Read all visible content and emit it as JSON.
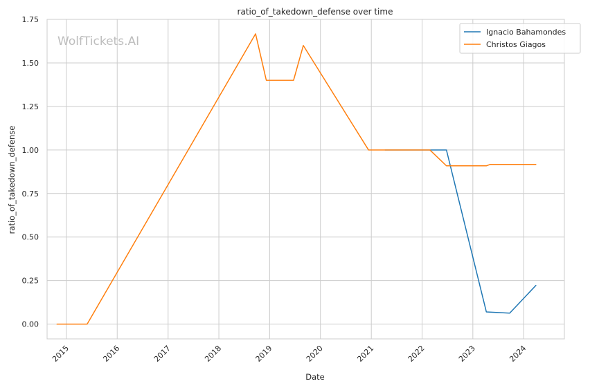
{
  "watermark": "WolfTickets.AI",
  "chart_data": {
    "type": "line",
    "title": "ratio_of_takedown_defense over time",
    "xlabel": "Date",
    "ylabel": "ratio_of_takedown_defense",
    "xlim": [
      "2014-08-15",
      "2024-10-20"
    ],
    "ylim": [
      -0.085,
      1.75
    ],
    "x_ticks": [
      "2015-01-01",
      "2016-01-01",
      "2017-01-01",
      "2018-01-01",
      "2019-01-01",
      "2020-01-01",
      "2021-01-01",
      "2022-01-01",
      "2023-01-01",
      "2024-01-01"
    ],
    "x_tick_labels": [
      "2015",
      "2016",
      "2017",
      "2018",
      "2019",
      "2020",
      "2021",
      "2022",
      "2023",
      "2024"
    ],
    "y_ticks": [
      0.0,
      0.25,
      0.5,
      0.75,
      1.0,
      1.25,
      1.5,
      1.75
    ],
    "y_tick_labels": [
      "0.00",
      "0.25",
      "0.50",
      "0.75",
      "1.00",
      "1.25",
      "1.50",
      "1.75"
    ],
    "grid": true,
    "legend_position": "top-right",
    "series": [
      {
        "name": "Ignacio Bahamondes",
        "color": "#1f77b4",
        "points": [
          [
            "2021-04-10",
            1.0
          ],
          [
            "2022-06-25",
            1.0
          ],
          [
            "2023-04-08",
            0.07
          ],
          [
            "2023-09-23",
            0.063
          ],
          [
            "2024-03-29",
            0.222
          ]
        ]
      },
      {
        "name": "Christos Giagos",
        "color": "#ff7f0e",
        "points": [
          [
            "2014-10-25",
            0.0
          ],
          [
            "2015-05-30",
            0.0
          ],
          [
            "2018-09-22",
            1.667
          ],
          [
            "2018-12-08",
            1.4
          ],
          [
            "2019-06-22",
            1.4
          ],
          [
            "2019-08-31",
            1.6
          ],
          [
            "2020-12-12",
            1.0
          ],
          [
            "2021-03-20",
            1.0
          ],
          [
            "2022-02-26",
            1.0
          ],
          [
            "2022-06-25",
            0.909
          ],
          [
            "2023-04-08",
            0.909
          ],
          [
            "2023-05-06",
            0.917
          ],
          [
            "2024-03-29",
            0.917
          ]
        ]
      }
    ]
  }
}
